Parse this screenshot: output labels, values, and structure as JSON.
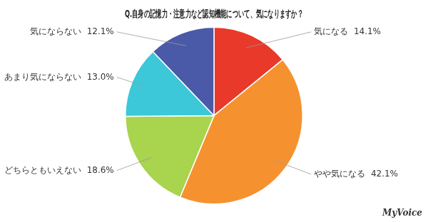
{
  "chart_data": {
    "type": "pie",
    "title": "Q.自身の記憶力・注意力など認知機能について、気になりますか？",
    "categories": [
      "気になる",
      "やや気になる",
      "どちらともいえない",
      "あまり気にならない",
      "気にならない"
    ],
    "values": [
      14.1,
      42.1,
      18.6,
      13.0,
      12.1
    ],
    "colors": [
      "#e8392a",
      "#f5922f",
      "#a8d44e",
      "#3cc8d8",
      "#4a5aa8"
    ],
    "data_labels": true,
    "value_labels": [
      "気になる  14.1%",
      "やや気になる  42.1%",
      "どちらともいえない  18.6%",
      "あまり気にならない  13.0%",
      "気にならない  12.1%"
    ],
    "annotations": [
      "MyVoice"
    ]
  }
}
